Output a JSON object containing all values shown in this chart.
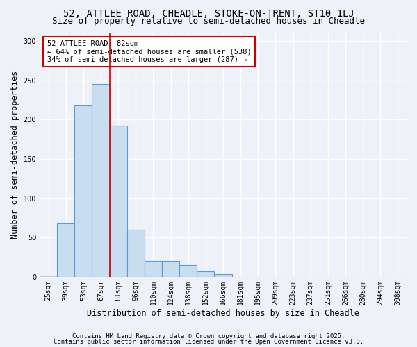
{
  "title_line1": "52, ATTLEE ROAD, CHEADLE, STOKE-ON-TRENT, ST10 1LJ",
  "title_line2": "Size of property relative to semi-detached houses in Cheadle",
  "xlabel": "Distribution of semi-detached houses by size in Cheadle",
  "ylabel": "Number of semi-detached properties",
  "bar_labels": [
    "25sqm",
    "39sqm",
    "53sqm",
    "67sqm",
    "81sqm",
    "96sqm",
    "110sqm",
    "124sqm",
    "138sqm",
    "152sqm",
    "166sqm",
    "181sqm",
    "195sqm",
    "209sqm",
    "223sqm",
    "237sqm",
    "251sqm",
    "266sqm",
    "280sqm",
    "294sqm",
    "308sqm"
  ],
  "bar_values": [
    2,
    68,
    218,
    245,
    192,
    60,
    20,
    20,
    15,
    7,
    3,
    0,
    0,
    0,
    0,
    0,
    0,
    0,
    0,
    0,
    0
  ],
  "bar_color": "#c9ddf0",
  "bar_edge_color": "#5b9bd5",
  "vline_index": 3,
  "vline_color": "#cc0000",
  "annotation_text": "52 ATTLEE ROAD: 82sqm\n← 64% of semi-detached houses are smaller (538)\n34% of semi-detached houses are larger (287) →",
  "annotation_box_color": "#ffffff",
  "annotation_box_edge_color": "#cc0000",
  "ylim": [
    0,
    310
  ],
  "yticks": [
    0,
    50,
    100,
    150,
    200,
    250,
    300
  ],
  "footnote1": "Contains HM Land Registry data © Crown copyright and database right 2025.",
  "footnote2": "Contains public sector information licensed under the Open Government Licence v3.0.",
  "bg_color": "#eef2f8",
  "plot_bg_color": "#eef2f8",
  "grid_color": "#ffffff",
  "title_fontsize": 10,
  "subtitle_fontsize": 9,
  "axis_label_fontsize": 8.5,
  "tick_fontsize": 7,
  "annotation_fontsize": 7.5,
  "footnote_fontsize": 6.5
}
